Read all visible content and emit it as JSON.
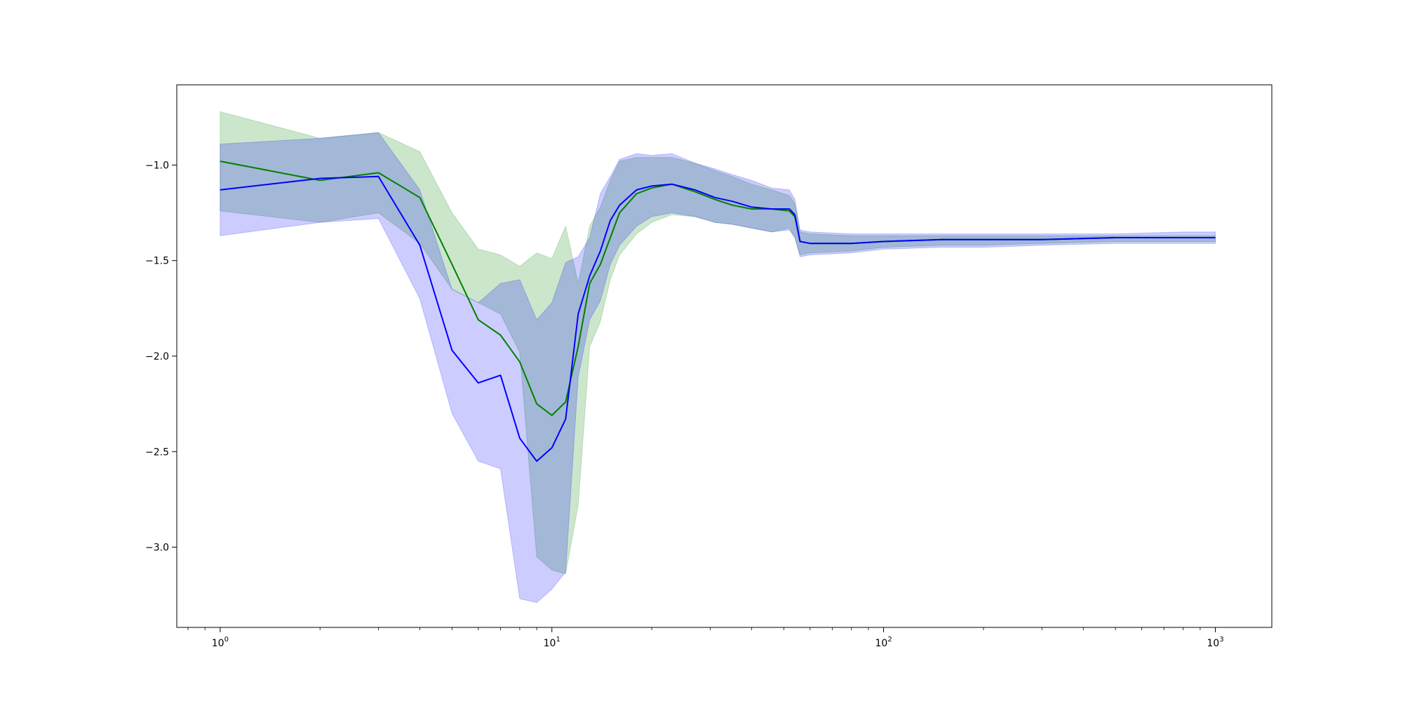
{
  "chart_data": {
    "type": "line",
    "title": "",
    "xlabel": "",
    "ylabel": "",
    "xscale": "log",
    "xlim": [
      0.74,
      1480
    ],
    "ylim": [
      -3.42,
      -0.58
    ],
    "grid": false,
    "legend": "none",
    "x_tick_labels": [
      {
        "value": 1,
        "base": "10",
        "exp": "0"
      },
      {
        "value": 10,
        "base": "10",
        "exp": "1"
      },
      {
        "value": 100,
        "base": "10",
        "exp": "2"
      },
      {
        "value": 1000,
        "base": "10",
        "exp": "3"
      }
    ],
    "y_ticks": [
      {
        "value": -1.0,
        "label": "−1.0"
      },
      {
        "value": -1.5,
        "label": "−1.5"
      },
      {
        "value": -2.0,
        "label": "−2.0"
      },
      {
        "value": -2.5,
        "label": "−2.5"
      },
      {
        "value": -3.0,
        "label": "−3.0"
      }
    ],
    "series": [
      {
        "color": "#008000",
        "band_color": "#008000",
        "band_opacity": 0.2,
        "x": [
          1,
          2,
          3,
          4,
          5,
          6,
          7,
          8,
          9,
          10,
          11,
          12,
          13,
          14,
          15,
          16,
          18,
          20,
          23,
          27,
          31,
          35,
          40,
          46,
          52,
          54,
          56,
          60,
          80,
          100,
          150,
          200,
          300,
          500,
          800,
          1000
        ],
        "y": [
          -0.98,
          -1.08,
          -1.04,
          -1.17,
          -1.52,
          -1.81,
          -1.89,
          -2.03,
          -2.25,
          -2.31,
          -2.24,
          -1.95,
          -1.62,
          -1.52,
          -1.38,
          -1.25,
          -1.15,
          -1.12,
          -1.1,
          -1.14,
          -1.18,
          -1.21,
          -1.23,
          -1.23,
          -1.24,
          -1.27,
          -1.4,
          -1.41,
          -1.41,
          -1.4,
          -1.39,
          -1.39,
          -1.39,
          -1.38,
          -1.38,
          -1.38
        ],
        "upper": [
          -0.72,
          -0.86,
          -0.83,
          -0.93,
          -1.25,
          -1.44,
          -1.47,
          -1.53,
          -1.46,
          -1.49,
          -1.32,
          -1.62,
          -1.32,
          -1.22,
          -1.08,
          -0.98,
          -0.96,
          -0.96,
          -0.96,
          -0.99,
          -1.03,
          -1.06,
          -1.1,
          -1.13,
          -1.16,
          -1.2,
          -1.35,
          -1.36,
          -1.37,
          -1.37,
          -1.37,
          -1.37,
          -1.37,
          -1.37,
          -1.37,
          -1.37
        ],
        "lower": [
          -1.24,
          -1.3,
          -1.25,
          -1.41,
          -1.65,
          -1.72,
          -1.78,
          -1.98,
          -3.05,
          -3.12,
          -3.14,
          -2.78,
          -1.95,
          -1.82,
          -1.6,
          -1.47,
          -1.36,
          -1.3,
          -1.26,
          -1.27,
          -1.3,
          -1.31,
          -1.33,
          -1.35,
          -1.33,
          -1.38,
          -1.47,
          -1.46,
          -1.45,
          -1.43,
          -1.42,
          -1.42,
          -1.41,
          -1.4,
          -1.4,
          -1.4
        ]
      },
      {
        "color": "#0000ff",
        "band_color": "#0000ff",
        "band_opacity": 0.2,
        "x": [
          1,
          2,
          3,
          4,
          5,
          6,
          7,
          8,
          9,
          10,
          11,
          12,
          13,
          14,
          15,
          16,
          18,
          20,
          23,
          27,
          31,
          35,
          40,
          46,
          52,
          54,
          56,
          60,
          80,
          100,
          150,
          200,
          300,
          500,
          800,
          1000
        ],
        "y": [
          -1.13,
          -1.07,
          -1.06,
          -1.42,
          -1.97,
          -2.14,
          -2.1,
          -2.43,
          -2.55,
          -2.48,
          -2.33,
          -1.78,
          -1.58,
          -1.45,
          -1.29,
          -1.21,
          -1.13,
          -1.11,
          -1.1,
          -1.13,
          -1.17,
          -1.19,
          -1.22,
          -1.23,
          -1.23,
          -1.26,
          -1.4,
          -1.41,
          -1.41,
          -1.4,
          -1.39,
          -1.39,
          -1.39,
          -1.38,
          -1.38,
          -1.38
        ],
        "upper": [
          -0.89,
          -0.86,
          -0.83,
          -1.13,
          -1.65,
          -1.72,
          -1.62,
          -1.6,
          -1.81,
          -1.72,
          -1.51,
          -1.48,
          -1.38,
          -1.15,
          -1.06,
          -0.97,
          -0.94,
          -0.95,
          -0.94,
          -0.99,
          -1.02,
          -1.05,
          -1.08,
          -1.12,
          -1.13,
          -1.18,
          -1.34,
          -1.35,
          -1.36,
          -1.36,
          -1.36,
          -1.36,
          -1.36,
          -1.36,
          -1.35,
          -1.35
        ],
        "lower": [
          -1.37,
          -1.3,
          -1.28,
          -1.7,
          -2.3,
          -2.55,
          -2.59,
          -3.27,
          -3.29,
          -3.22,
          -3.13,
          -2.11,
          -1.81,
          -1.71,
          -1.52,
          -1.42,
          -1.32,
          -1.27,
          -1.25,
          -1.27,
          -1.3,
          -1.31,
          -1.33,
          -1.35,
          -1.34,
          -1.38,
          -1.48,
          -1.47,
          -1.46,
          -1.44,
          -1.43,
          -1.43,
          -1.42,
          -1.41,
          -1.41,
          -1.41
        ]
      }
    ]
  }
}
